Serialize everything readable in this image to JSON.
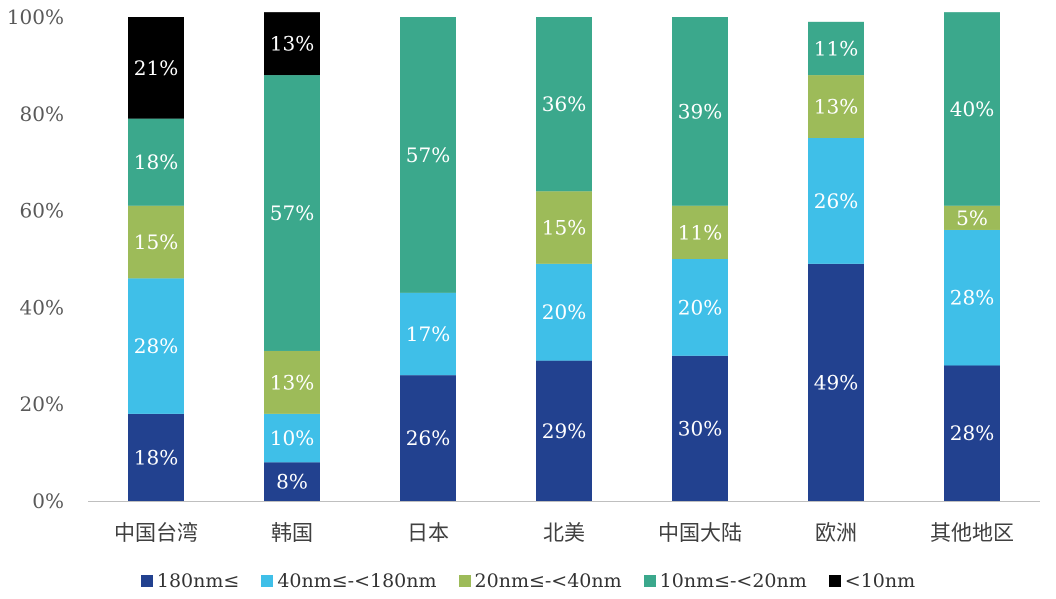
{
  "chart_data": {
    "type": "bar",
    "stacked": true,
    "categories": [
      "中国台湾",
      "韩国",
      "日本",
      "北美",
      "中国大陆",
      "欧洲",
      "其他地区"
    ],
    "series": [
      {
        "name": "180nm≤",
        "color": "#22418F",
        "values": [
          18,
          8,
          26,
          29,
          30,
          49,
          28
        ],
        "labels": [
          "18%",
          "8%",
          "26%",
          "29%",
          "30%",
          "49%",
          "28%"
        ]
      },
      {
        "name": "40nm≤-<180nm",
        "color": "#3FBFE8",
        "values": [
          28,
          10,
          17,
          20,
          20,
          26,
          28
        ],
        "labels": [
          "28%",
          "10%",
          "17%",
          "20%",
          "20%",
          "26%",
          "28%"
        ]
      },
      {
        "name": "20nm≤-<40nm",
        "color": "#9DBB59",
        "values": [
          15,
          13,
          0,
          15,
          11,
          13,
          5
        ],
        "labels": [
          "15%",
          "13%",
          "",
          "15%",
          "11%",
          "13%",
          "5%"
        ]
      },
      {
        "name": "10nm≤-<20nm",
        "color": "#3BA88C",
        "values": [
          18,
          57,
          57,
          36,
          39,
          11,
          40
        ],
        "labels": [
          "18%",
          "57%",
          "57%",
          "36%",
          "39%",
          "11%",
          "40%"
        ]
      },
      {
        "name": "<10nm",
        "color": "#000000",
        "values": [
          21,
          13,
          0,
          0,
          0,
          0,
          0
        ],
        "labels": [
          "21%",
          "13%",
          "",
          "",
          "",
          "",
          ""
        ]
      }
    ],
    "y_ticks": [
      "0%",
      "20%",
      "40%",
      "60%",
      "80%",
      "100%"
    ],
    "ylim": [
      0,
      100
    ],
    "grid": false,
    "legend_position": "bottom"
  }
}
